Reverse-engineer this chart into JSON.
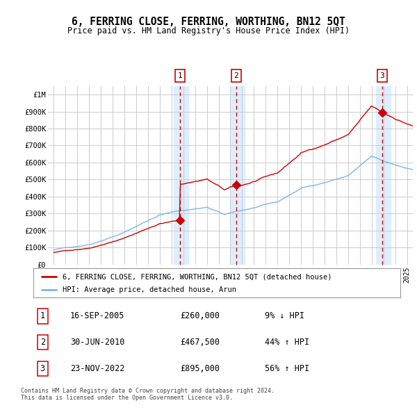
{
  "title": "6, FERRING CLOSE, FERRING, WORTHING, BN12 5QT",
  "subtitle": "Price paid vs. HM Land Registry's House Price Index (HPI)",
  "hpi_color": "#7ab8e8",
  "price_color": "#cc0000",
  "background_color": "#ffffff",
  "grid_color": "#cccccc",
  "highlight_bg": "#ddeeff",
  "yticks": [
    0,
    100000,
    200000,
    300000,
    400000,
    500000,
    600000,
    700000,
    800000,
    900000,
    1000000
  ],
  "ytick_labels": [
    "£0",
    "£100K",
    "£200K",
    "£300K",
    "£400K",
    "£500K",
    "£600K",
    "£700K",
    "£800K",
    "£900K",
    "£1M"
  ],
  "sales": [
    {
      "date_num": 2005.71,
      "price": 260000,
      "label": "1"
    },
    {
      "date_num": 2010.5,
      "price": 467500,
      "label": "2"
    },
    {
      "date_num": 2022.9,
      "price": 895000,
      "label": "3"
    }
  ],
  "legend_entries": [
    {
      "label": "6, FERRING CLOSE, FERRING, WORTHING, BN12 5QT (detached house)",
      "color": "#cc0000"
    },
    {
      "label": "HPI: Average price, detached house, Arun",
      "color": "#7ab8e8"
    }
  ],
  "table_rows": [
    {
      "num": "1",
      "date": "16-SEP-2005",
      "price": "£260,000",
      "change": "9% ↓ HPI"
    },
    {
      "num": "2",
      "date": "30-JUN-2010",
      "price": "£467,500",
      "change": "44% ↑ HPI"
    },
    {
      "num": "3",
      "date": "23-NOV-2022",
      "price": "£895,000",
      "change": "56% ↑ HPI"
    }
  ],
  "footnote": "Contains HM Land Registry data © Crown copyright and database right 2024.\nThis data is licensed under the Open Government Licence v3.0.",
  "xmin": 1994.5,
  "xmax": 2025.5
}
